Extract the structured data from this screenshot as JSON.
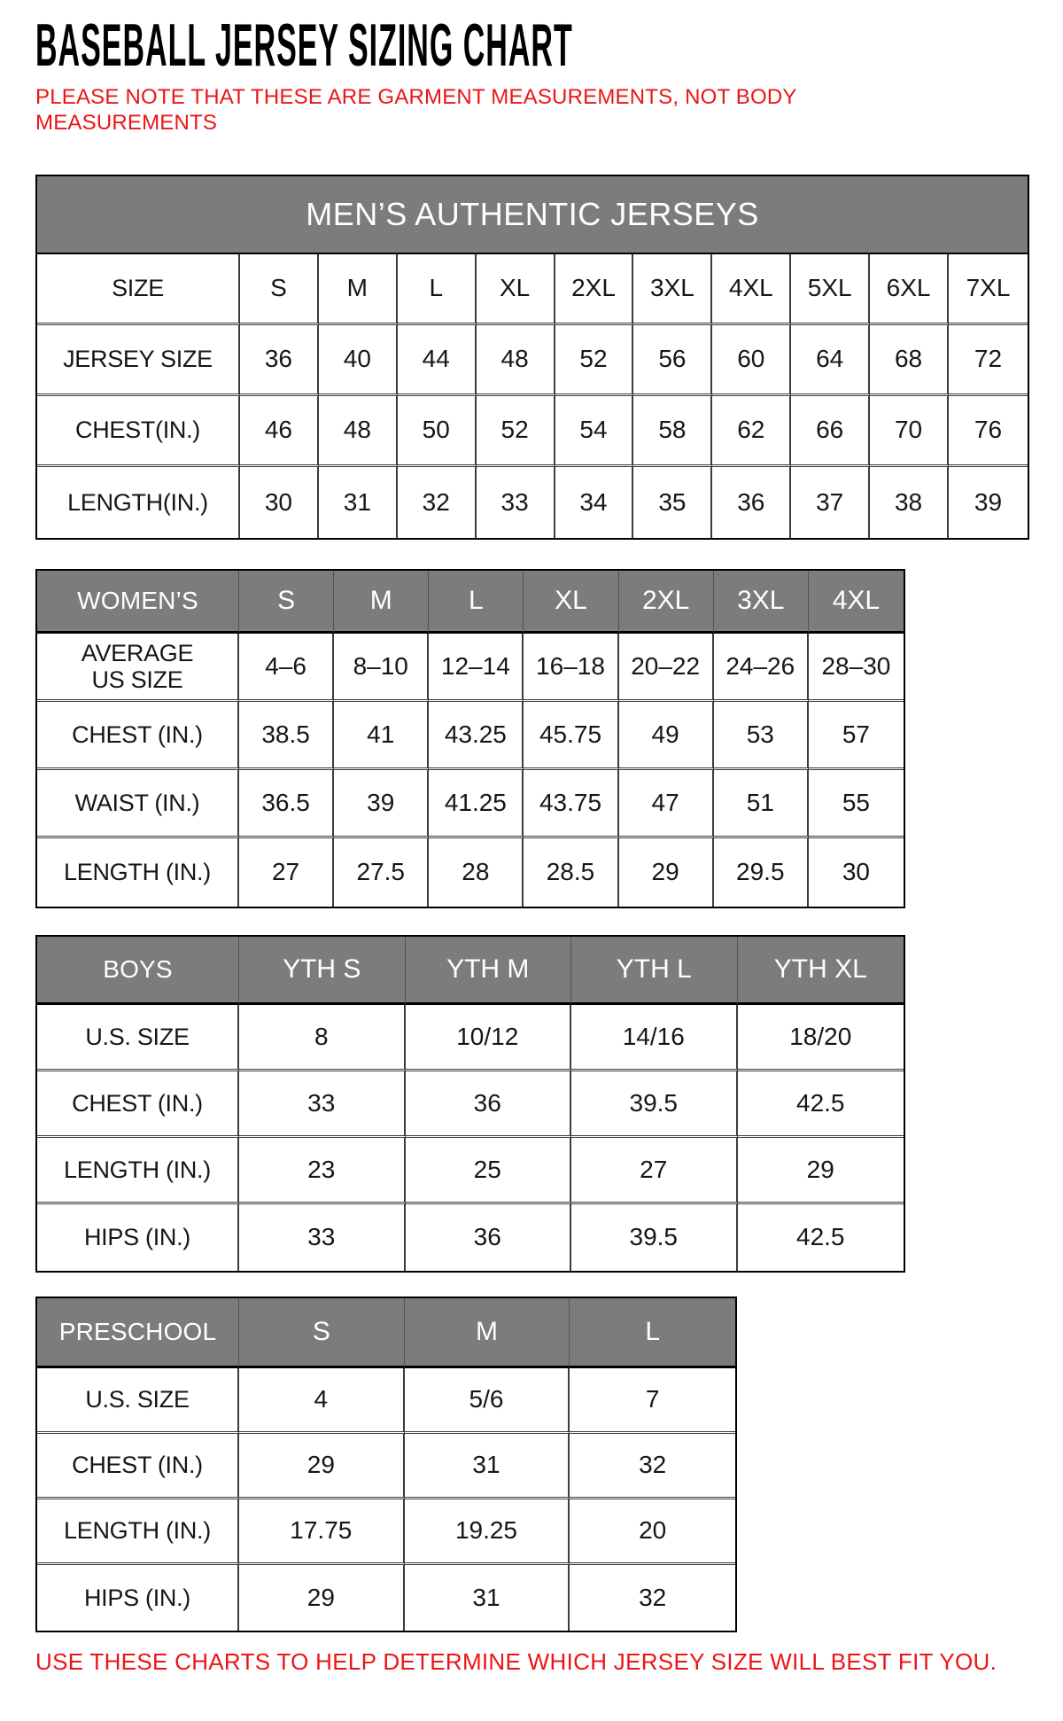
{
  "page": {
    "title": "BASEBALL JERSEY SIZING CHART",
    "note": "PLEASE NOTE THAT THESE ARE GARMENT MEASUREMENTS, NOT BODY MEASUREMENTS",
    "footer": "USE THESE CHARTS TO HELP DETERMINE WHICH JERSEY SIZE WILL BEST FIT YOU.",
    "colors": {
      "accent_red": "#ec1515",
      "header_gray": "#7c7c7c",
      "border_line": "#3c3c3c"
    }
  },
  "tables": {
    "mens": {
      "banner": "MEN’S AUTHENTIC JERSEYS",
      "rows": [
        {
          "label": "SIZE",
          "cells": [
            "S",
            "M",
            "L",
            "XL",
            "2XL",
            "3XL",
            "4XL",
            "5XL",
            "6XL",
            "7XL"
          ]
        },
        {
          "label": "JERSEY SIZE",
          "cells": [
            "36",
            "40",
            "44",
            "48",
            "52",
            "56",
            "60",
            "64",
            "68",
            "72"
          ]
        },
        {
          "label": "CHEST(IN.)",
          "cells": [
            "46",
            "48",
            "50",
            "52",
            "54",
            "58",
            "62",
            "66",
            "70",
            "76"
          ]
        },
        {
          "label": "LENGTH(IN.)",
          "cells": [
            "30",
            "31",
            "32",
            "33",
            "34",
            "35",
            "36",
            "37",
            "38",
            "39"
          ]
        }
      ]
    },
    "womens": {
      "header": {
        "label": "WOMEN’S",
        "cells": [
          "S",
          "M",
          "L",
          "XL",
          "2XL",
          "3XL",
          "4XL"
        ]
      },
      "rows": [
        {
          "label": "AVERAGE\nUS SIZE",
          "cells": [
            "4–6",
            "8–10",
            "12–14",
            "16–18",
            "20–22",
            "24–26",
            "28–30"
          ]
        },
        {
          "label": "CHEST (IN.)",
          "cells": [
            "38.5",
            "41",
            "43.25",
            "45.75",
            "49",
            "53",
            "57"
          ]
        },
        {
          "label": "WAIST (IN.)",
          "cells": [
            "36.5",
            "39",
            "41.25",
            "43.75",
            "47",
            "51",
            "55"
          ]
        },
        {
          "label": "LENGTH (IN.)",
          "cells": [
            "27",
            "27.5",
            "28",
            "28.5",
            "29",
            "29.5",
            "30"
          ]
        }
      ]
    },
    "boys": {
      "header": {
        "label": "BOYS",
        "cells": [
          "YTH S",
          "YTH M",
          "YTH L",
          "YTH XL"
        ]
      },
      "rows": [
        {
          "label": "U.S. SIZE",
          "cells": [
            "8",
            "10/12",
            "14/16",
            "18/20"
          ]
        },
        {
          "label": "CHEST (IN.)",
          "cells": [
            "33",
            "36",
            "39.5",
            "42.5"
          ]
        },
        {
          "label": "LENGTH (IN.)",
          "cells": [
            "23",
            "25",
            "27",
            "29"
          ]
        },
        {
          "label": "HIPS (IN.)",
          "cells": [
            "33",
            "36",
            "39.5",
            "42.5"
          ]
        }
      ]
    },
    "preschool": {
      "header": {
        "label": "PRESCHOOL",
        "cells": [
          "S",
          "M",
          "L"
        ]
      },
      "rows": [
        {
          "label": "U.S. SIZE",
          "cells": [
            "4",
            "5/6",
            "7"
          ]
        },
        {
          "label": "CHEST (IN.)",
          "cells": [
            "29",
            "31",
            "32"
          ]
        },
        {
          "label": "LENGTH (IN.)",
          "cells": [
            "17.75",
            "19.25",
            "20"
          ]
        },
        {
          "label": "HIPS (IN.)",
          "cells": [
            "29",
            "31",
            "32"
          ]
        }
      ]
    }
  }
}
